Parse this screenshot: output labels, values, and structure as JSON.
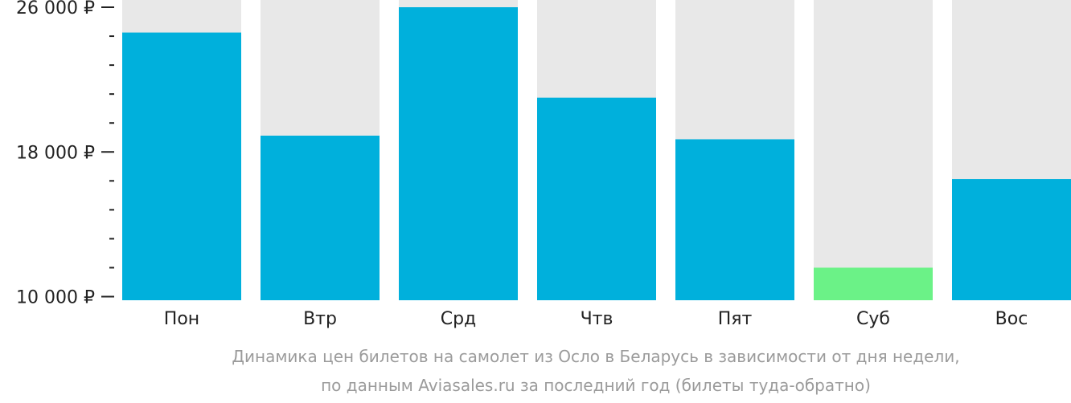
{
  "chart_data": {
    "type": "bar",
    "categories": [
      "Пон",
      "Втр",
      "Срд",
      "Чтв",
      "Пят",
      "Суб",
      "Вос"
    ],
    "values": [
      24600,
      18900,
      26000,
      21000,
      18700,
      11600,
      16500
    ],
    "ylim": [
      9800,
      26400
    ],
    "y_ticks_major": [
      10000,
      18000,
      26000
    ],
    "y_tick_labels": [
      "10 000 ₽",
      "18 000 ₽",
      "26 000 ₽"
    ],
    "y_ticks_minor": [
      11600,
      13200,
      14800,
      16400,
      19600,
      21200,
      22800,
      24400
    ],
    "colors": {
      "bar": "#00b0dc",
      "bar_lowest": "#6bf287",
      "track": "#e8e8e8",
      "axis": "#222222",
      "caption": "#9b9b9b"
    },
    "lowest_category": "Суб",
    "grid": false,
    "legend": "none",
    "caption_line1": "Динамика цен билетов на самолет из Осло в Беларусь в зависимости от дня недели,",
    "caption_line2": "по данным Aviasales.ru за последний год (билеты туда-обратно)"
  }
}
